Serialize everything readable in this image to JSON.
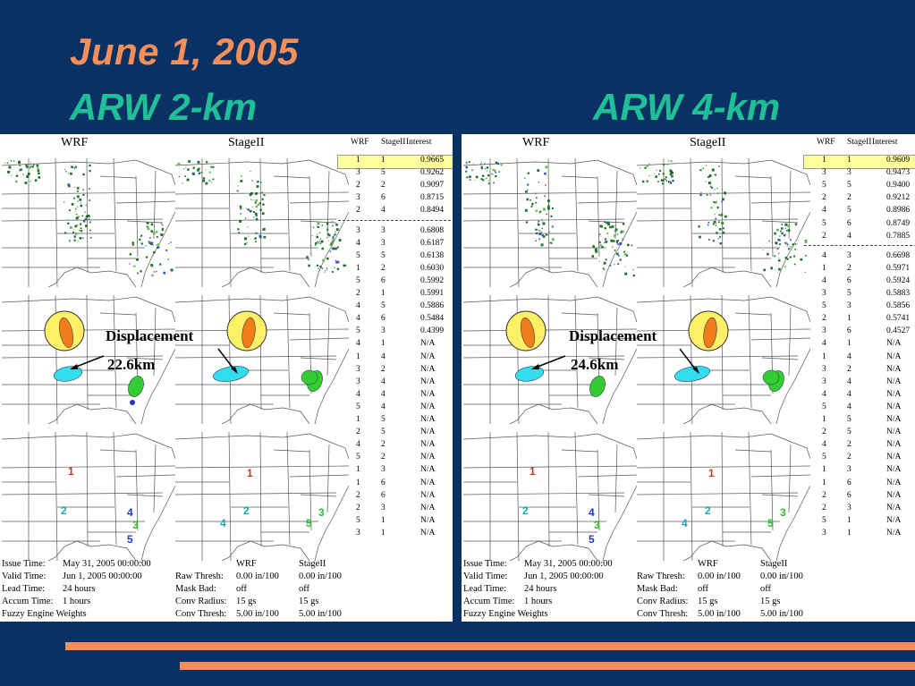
{
  "slide": {
    "title_date": "June 1, 2005",
    "title_left": "ARW 2-km",
    "title_right": "ARW 4-km"
  },
  "panels": [
    {
      "col_wrf": "WRF",
      "col_stage": "StageII",
      "table_headers": [
        "WRF",
        "StageII",
        "Interest"
      ],
      "rows_top": [
        [
          "1",
          "1",
          "0.9665"
        ],
        [
          "3",
          "5",
          "0.9262"
        ],
        [
          "2",
          "2",
          "0.9097"
        ],
        [
          "3",
          "6",
          "0.8715"
        ],
        [
          "2",
          "4",
          "0.8494"
        ]
      ],
      "rows_bottom": [
        [
          "3",
          "3",
          "0.6808"
        ],
        [
          "4",
          "3",
          "0.6187"
        ],
        [
          "5",
          "5",
          "0.6138"
        ],
        [
          "1",
          "2",
          "0.6030"
        ],
        [
          "5",
          "6",
          "0.5992"
        ],
        [
          "2",
          "1",
          "0.5991"
        ],
        [
          "4",
          "5",
          "0.5886"
        ],
        [
          "4",
          "6",
          "0.5484"
        ],
        [
          "5",
          "3",
          "0.4399"
        ],
        [
          "4",
          "1",
          "N/A"
        ],
        [
          "1",
          "4",
          "N/A"
        ],
        [
          "3",
          "2",
          "N/A"
        ],
        [
          "3",
          "4",
          "N/A"
        ],
        [
          "4",
          "4",
          "N/A"
        ],
        [
          "5",
          "4",
          "N/A"
        ],
        [
          "1",
          "5",
          "N/A"
        ],
        [
          "2",
          "5",
          "N/A"
        ],
        [
          "4",
          "2",
          "N/A"
        ],
        [
          "5",
          "2",
          "N/A"
        ],
        [
          "1",
          "3",
          "N/A"
        ],
        [
          "1",
          "6",
          "N/A"
        ],
        [
          "2",
          "6",
          "N/A"
        ],
        [
          "2",
          "3",
          "N/A"
        ],
        [
          "5",
          "1",
          "N/A"
        ],
        [
          "3",
          "1",
          "N/A"
        ]
      ],
      "displacement_label": "Displacement",
      "displacement_value": "22.6km",
      "info_left": [
        [
          "Issue Time:",
          "May 31, 2005 00:00:00"
        ],
        [
          "Valid Time:",
          "Jun 1, 2005 00:00:00"
        ],
        [
          "Lead Time:",
          "24 hours"
        ],
        [
          "Accum Time:",
          "1 hours"
        ],
        [
          "Fuzzy Engine Weights",
          ""
        ]
      ],
      "info_right_header": [
        "",
        "WRF",
        "StageII"
      ],
      "info_right": [
        [
          "Raw Thresh:",
          "0.00 in/100",
          "0.00 in/100"
        ],
        [
          "Mask Bad:",
          "off",
          "off"
        ],
        [
          "Conv Radius:",
          "15 gs",
          "15 gs"
        ],
        [
          "Conv Thresh:",
          "5.00 in/100",
          "5.00 in/100"
        ]
      ],
      "labels_wrf": [
        "1",
        "2",
        "3",
        "4",
        "5"
      ],
      "labels_stage": [
        "1",
        "2",
        "3",
        "4",
        "5"
      ]
    },
    {
      "col_wrf": "WRF",
      "col_stage": "StageII",
      "table_headers": [
        "WRF",
        "StageII",
        "Interest"
      ],
      "rows_top": [
        [
          "1",
          "1",
          "0.9609"
        ],
        [
          "3",
          "3",
          "0.9473"
        ],
        [
          "5",
          "5",
          "0.9400"
        ],
        [
          "2",
          "2",
          "0.9212"
        ],
        [
          "4",
          "5",
          "0.8986"
        ],
        [
          "5",
          "6",
          "0.8749"
        ],
        [
          "2",
          "4",
          "0.7885"
        ]
      ],
      "rows_bottom": [
        [
          "4",
          "3",
          "0.6698"
        ],
        [
          "1",
          "2",
          "0.5971"
        ],
        [
          "4",
          "6",
          "0.5924"
        ],
        [
          "3",
          "5",
          "0.5883"
        ],
        [
          "5",
          "3",
          "0.5856"
        ],
        [
          "2",
          "1",
          "0.5741"
        ],
        [
          "3",
          "6",
          "0.4527"
        ],
        [
          "4",
          "1",
          "N/A"
        ],
        [
          "1",
          "4",
          "N/A"
        ],
        [
          "3",
          "2",
          "N/A"
        ],
        [
          "3",
          "4",
          "N/A"
        ],
        [
          "4",
          "4",
          "N/A"
        ],
        [
          "5",
          "4",
          "N/A"
        ],
        [
          "1",
          "5",
          "N/A"
        ],
        [
          "2",
          "5",
          "N/A"
        ],
        [
          "4",
          "2",
          "N/A"
        ],
        [
          "5",
          "2",
          "N/A"
        ],
        [
          "1",
          "3",
          "N/A"
        ],
        [
          "1",
          "6",
          "N/A"
        ],
        [
          "2",
          "6",
          "N/A"
        ],
        [
          "2",
          "3",
          "N/A"
        ],
        [
          "5",
          "1",
          "N/A"
        ],
        [
          "3",
          "1",
          "N/A"
        ]
      ],
      "displacement_label": "Displacement",
      "displacement_value": "24.6km",
      "info_left": [
        [
          "Issue Time:",
          "May 31, 2005 00:00:00"
        ],
        [
          "Valid Time:",
          "Jun 1, 2005 00:00:00"
        ],
        [
          "Lead Time:",
          "24 hours"
        ],
        [
          "Accum Time:",
          "1 hours"
        ],
        [
          "Fuzzy Engine Weights",
          ""
        ]
      ],
      "info_right_header": [
        "",
        "WRF",
        "StageII"
      ],
      "info_right": [
        [
          "Raw Thresh:",
          "0.00 in/100",
          "0.00 in/100"
        ],
        [
          "Mask Bad:",
          "off",
          "off"
        ],
        [
          "Conv Radius:",
          "15 gs",
          "15 gs"
        ],
        [
          "Conv Thresh:",
          "5.00 in/100",
          "5.00 in/100"
        ]
      ],
      "labels_wrf": [
        "1",
        "2",
        "3",
        "4",
        "5"
      ],
      "labels_stage": [
        "1",
        "2",
        "3",
        "4",
        "5"
      ]
    }
  ],
  "colors": {
    "background": "#0a3163",
    "title_orange": "#f58f5a",
    "title_teal": "#1fbf98",
    "highlight_row": "#ffff99",
    "object_orange": "#f07d1a",
    "object_cyan": "#33ddee",
    "object_green": "#33cc33"
  }
}
